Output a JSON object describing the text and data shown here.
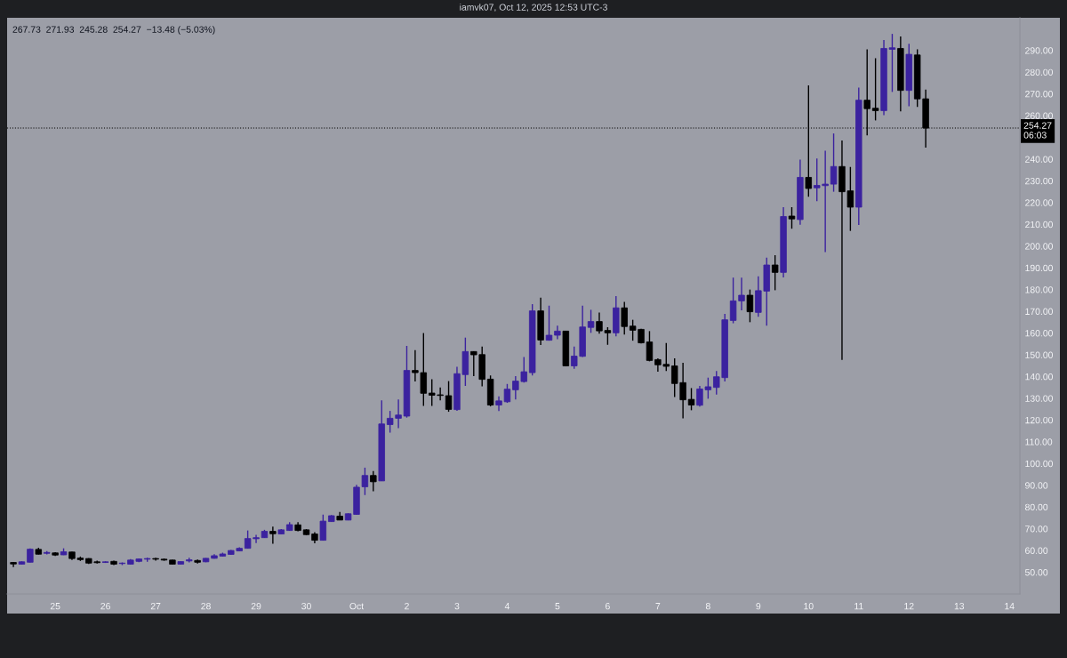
{
  "chart_data": {
    "type": "candlestick",
    "annotations": [
      "iamvk07, Oct 12, 2025 12:53 UTC-3",
      "267.73  271.93  245.28  254.27  −13.48 (−5.03%)"
    ],
    "x": [
      "2025-09-24T04:00",
      "2025-09-24T08:00",
      "2025-09-24T12:00",
      "2025-09-24T16:00",
      "2025-09-24T20:00",
      "2025-09-25T00:00",
      "2025-09-25T04:00",
      "2025-09-25T08:00",
      "2025-09-25T12:00",
      "2025-09-25T16:00",
      "2025-09-25T20:00",
      "2025-09-26T00:00",
      "2025-09-26T04:00",
      "2025-09-26T08:00",
      "2025-09-26T12:00",
      "2025-09-26T16:00",
      "2025-09-26T20:00",
      "2025-09-27T00:00",
      "2025-09-27T04:00",
      "2025-09-27T08:00",
      "2025-09-27T12:00",
      "2025-09-27T16:00",
      "2025-09-27T20:00",
      "2025-09-28T00:00",
      "2025-09-28T04:00",
      "2025-09-28T08:00",
      "2025-09-28T12:00",
      "2025-09-28T16:00",
      "2025-09-28T20:00",
      "2025-09-29T00:00",
      "2025-09-29T04:00",
      "2025-09-29T08:00",
      "2025-09-29T12:00",
      "2025-09-29T16:00",
      "2025-09-29T20:00",
      "2025-09-30T00:00",
      "2025-09-30T04:00",
      "2025-09-30T08:00",
      "2025-09-30T12:00",
      "2025-09-30T16:00",
      "2025-09-30T20:00",
      "2025-10-01T00:00",
      "2025-10-01T04:00",
      "2025-10-01T08:00",
      "2025-10-01T12:00",
      "2025-10-01T16:00",
      "2025-10-01T20:00",
      "2025-10-02T00:00",
      "2025-10-02T04:00",
      "2025-10-02T08:00",
      "2025-10-02T12:00",
      "2025-10-02T16:00",
      "2025-10-02T20:00",
      "2025-10-03T00:00",
      "2025-10-03T04:00",
      "2025-10-03T08:00",
      "2025-10-03T12:00",
      "2025-10-03T16:00",
      "2025-10-03T20:00",
      "2025-10-04T00:00",
      "2025-10-04T04:00",
      "2025-10-04T08:00",
      "2025-10-04T12:00",
      "2025-10-04T16:00",
      "2025-10-04T20:00",
      "2025-10-05T00:00",
      "2025-10-05T04:00",
      "2025-10-05T08:00",
      "2025-10-05T12:00",
      "2025-10-05T16:00",
      "2025-10-05T20:00",
      "2025-10-06T00:00",
      "2025-10-06T04:00",
      "2025-10-06T08:00",
      "2025-10-06T12:00",
      "2025-10-06T16:00",
      "2025-10-06T20:00",
      "2025-10-07T00:00",
      "2025-10-07T04:00",
      "2025-10-07T08:00",
      "2025-10-07T12:00",
      "2025-10-07T16:00",
      "2025-10-07T20:00",
      "2025-10-08T00:00",
      "2025-10-08T04:00",
      "2025-10-08T08:00",
      "2025-10-08T12:00",
      "2025-10-08T16:00",
      "2025-10-08T20:00",
      "2025-10-09T00:00",
      "2025-10-09T04:00",
      "2025-10-09T08:00",
      "2025-10-09T12:00",
      "2025-10-09T16:00",
      "2025-10-09T20:00",
      "2025-10-10T00:00",
      "2025-10-10T04:00",
      "2025-10-10T08:00",
      "2025-10-10T12:00",
      "2025-10-10T16:00",
      "2025-10-10T20:00",
      "2025-10-11T00:00",
      "2025-10-11T04:00",
      "2025-10-11T08:00",
      "2025-10-11T12:00",
      "2025-10-11T16:00",
      "2025-10-11T20:00",
      "2025-10-12T00:00",
      "2025-10-12T04:00",
      "2025-10-12T08:00"
    ],
    "ohlc": [
      [
        54.5,
        54.7,
        52.4,
        53.8
      ],
      [
        53.7,
        55.0,
        53.5,
        54.8
      ],
      [
        54.6,
        61.0,
        54.5,
        60.6
      ],
      [
        60.5,
        61.3,
        58.2,
        58.3
      ],
      [
        58.7,
        59.7,
        58.2,
        59.1
      ],
      [
        58.9,
        59.2,
        57.5,
        57.9
      ],
      [
        58.0,
        61.0,
        57.9,
        59.4
      ],
      [
        59.3,
        59.4,
        55.6,
        56.3
      ],
      [
        56.5,
        57.2,
        55.2,
        55.8
      ],
      [
        56.3,
        56.5,
        53.8,
        54.2
      ],
      [
        54.8,
        55.3,
        54.0,
        54.4
      ],
      [
        54.5,
        55.0,
        54.3,
        54.8
      ],
      [
        55.0,
        55.3,
        53.3,
        53.7
      ],
      [
        54.0,
        54.5,
        53.3,
        54.2
      ],
      [
        53.7,
        56.1,
        53.5,
        55.6
      ],
      [
        55.0,
        56.3,
        54.6,
        56.1
      ],
      [
        56.0,
        56.7,
        54.8,
        56.3
      ],
      [
        56.3,
        56.7,
        55.3,
        56.0
      ],
      [
        56.0,
        56.3,
        55.3,
        55.6
      ],
      [
        55.6,
        55.7,
        53.5,
        53.7
      ],
      [
        53.7,
        55.0,
        53.5,
        54.9
      ],
      [
        55.2,
        56.7,
        54.5,
        55.7
      ],
      [
        55.4,
        55.8,
        54.0,
        54.6
      ],
      [
        54.8,
        56.5,
        54.6,
        56.4
      ],
      [
        56.4,
        58.3,
        56.3,
        57.6
      ],
      [
        57.4,
        59.0,
        57.2,
        58.4
      ],
      [
        58.2,
        60.2,
        58.0,
        60.0
      ],
      [
        59.8,
        61.5,
        59.7,
        61.0
      ],
      [
        61.0,
        69.2,
        60.9,
        65.5
      ],
      [
        65.4,
        67.2,
        63.4,
        65.9
      ],
      [
        65.9,
        69.5,
        65.8,
        68.8
      ],
      [
        68.8,
        71.0,
        63.1,
        67.7
      ],
      [
        67.6,
        69.9,
        67.5,
        69.5
      ],
      [
        69.2,
        73.0,
        69.0,
        71.9
      ],
      [
        71.8,
        73.0,
        68.8,
        69.2
      ],
      [
        69.5,
        69.8,
        67.0,
        67.3
      ],
      [
        67.6,
        68.4,
        63.3,
        64.7
      ],
      [
        64.7,
        76.5,
        64.6,
        73.5
      ],
      [
        73.3,
        76.3,
        73.2,
        76.0
      ],
      [
        75.8,
        77.7,
        73.9,
        74.0
      ],
      [
        74.0,
        77.1,
        73.9,
        76.9
      ],
      [
        76.6,
        90.2,
        76.5,
        89.1
      ],
      [
        89.3,
        98.1,
        85.5,
        94.5
      ],
      [
        94.5,
        96.5,
        87.2,
        91.6
      ],
      [
        92.0,
        129.0,
        91.9,
        118.2
      ],
      [
        117.9,
        124.2,
        114.2,
        120.8
      ],
      [
        120.8,
        129.5,
        116.3,
        122.3
      ],
      [
        121.8,
        154.1,
        121.1,
        142.8
      ],
      [
        142.8,
        152.2,
        137.7,
        141.8
      ],
      [
        141.8,
        160.0,
        126.5,
        132.3
      ],
      [
        132.4,
        138.8,
        126.5,
        131.4
      ],
      [
        131.6,
        135.0,
        129.0,
        131.3
      ],
      [
        131.2,
        137.9,
        123.8,
        124.9
      ],
      [
        124.8,
        144.5,
        124.2,
        141.3
      ],
      [
        140.9,
        157.9,
        135.7,
        151.5
      ],
      [
        151.5,
        151.6,
        140.2,
        150.0
      ],
      [
        150.1,
        153.8,
        135.5,
        138.7
      ],
      [
        138.8,
        140.5,
        126.3,
        126.9
      ],
      [
        126.9,
        130.9,
        124.1,
        128.8
      ],
      [
        128.4,
        136.6,
        127.9,
        134.2
      ],
      [
        133.9,
        140.2,
        129.5,
        137.9
      ],
      [
        137.7,
        149.0,
        137.2,
        142.2
      ],
      [
        141.8,
        173.3,
        140.5,
        170.2
      ],
      [
        170.2,
        176.3,
        154.5,
        156.8
      ],
      [
        156.7,
        172.6,
        156.5,
        159.0
      ],
      [
        159.0,
        163.4,
        157.2,
        160.9
      ],
      [
        160.9,
        161.0,
        144.7,
        144.9
      ],
      [
        144.9,
        153.8,
        143.6,
        149.4
      ],
      [
        149.3,
        172.6,
        149.0,
        162.8
      ],
      [
        162.6,
        170.7,
        160.1,
        165.3
      ],
      [
        165.3,
        169.4,
        159.7,
        161.0
      ],
      [
        161.2,
        162.7,
        154.6,
        160.1
      ],
      [
        160.1,
        177.0,
        158.5,
        171.6
      ],
      [
        171.6,
        174.3,
        159.3,
        163.0
      ],
      [
        163.2,
        166.1,
        156.5,
        161.3
      ],
      [
        161.7,
        162.0,
        155.2,
        155.5
      ],
      [
        155.9,
        160.9,
        147.0,
        147.4
      ],
      [
        147.8,
        148.4,
        142.2,
        145.4
      ],
      [
        145.6,
        155.4,
        142.5,
        144.7
      ],
      [
        144.9,
        148.4,
        130.6,
        136.8
      ],
      [
        137.2,
        146.3,
        120.8,
        129.3
      ],
      [
        129.5,
        134.7,
        124.5,
        126.9
      ],
      [
        126.8,
        135.7,
        126.2,
        134.3
      ],
      [
        133.9,
        139.5,
        129.8,
        135.3
      ],
      [
        135.0,
        142.5,
        131.7,
        139.9
      ],
      [
        139.5,
        168.8,
        137.7,
        166.1
      ],
      [
        165.8,
        185.5,
        164.5,
        174.8
      ],
      [
        174.8,
        185.5,
        170.5,
        177.4
      ],
      [
        177.4,
        180.0,
        165.0,
        169.8
      ],
      [
        169.5,
        186.1,
        167.5,
        179.5
      ],
      [
        179.3,
        194.7,
        163.4,
        191.3
      ],
      [
        191.3,
        195.8,
        179.7,
        187.9
      ],
      [
        187.9,
        217.9,
        185.6,
        213.6
      ],
      [
        213.8,
        217.9,
        208.0,
        212.5
      ],
      [
        212.2,
        239.8,
        209.8,
        231.6
      ],
      [
        231.6,
        273.9,
        222.7,
        226.5
      ],
      [
        226.8,
        240.3,
        220.7,
        227.9
      ],
      [
        227.8,
        243.9,
        197.2,
        228.5
      ],
      [
        228.5,
        251.8,
        225.0,
        236.6
      ],
      [
        236.6,
        248.6,
        147.7,
        225.0
      ],
      [
        225.4,
        236.4,
        207.0,
        217.9
      ],
      [
        217.9,
        272.9,
        209.7,
        267.1
      ],
      [
        267.1,
        290.5,
        250.9,
        263.2
      ],
      [
        263.4,
        286.4,
        257.8,
        262.3
      ],
      [
        262.3,
        294.8,
        260.2,
        290.9
      ],
      [
        290.5,
        297.6,
        270.9,
        291.2
      ],
      [
        290.9,
        296.4,
        262.0,
        271.6
      ],
      [
        271.6,
        293.0,
        264.3,
        288.2
      ],
      [
        287.9,
        290.5,
        264.0,
        267.7
      ],
      [
        267.73,
        271.93,
        245.28,
        254.27
      ]
    ],
    "colors": [
      "#000000",
      "#3b229f",
      "#3b229f",
      "#000000",
      "#3b229f",
      "#000000",
      "#3b229f",
      "#000000",
      "#000000",
      "#000000",
      "#000000",
      "#3b229f",
      "#000000",
      "#3b229f",
      "#3b229f",
      "#3b229f",
      "#3b229f",
      "#000000",
      "#000000",
      "#000000",
      "#3b229f",
      "#3b229f",
      "#000000",
      "#3b229f",
      "#3b229f",
      "#3b229f",
      "#3b229f",
      "#3b229f",
      "#3b229f",
      "#3b229f",
      "#3b229f",
      "#000000",
      "#3b229f",
      "#3b229f",
      "#000000",
      "#000000",
      "#000000",
      "#3b229f",
      "#3b229f",
      "#000000",
      "#3b229f",
      "#3b229f",
      "#3b229f",
      "#000000",
      "#3b229f",
      "#3b229f",
      "#3b229f",
      "#3b229f",
      "#000000",
      "#000000",
      "#000000",
      "#000000",
      "#000000",
      "#3b229f",
      "#3b229f",
      "#000000",
      "#000000",
      "#000000",
      "#3b229f",
      "#3b229f",
      "#3b229f",
      "#3b229f",
      "#3b229f",
      "#000000",
      "#3b229f",
      "#3b229f",
      "#000000",
      "#3b229f",
      "#3b229f",
      "#3b229f",
      "#000000",
      "#000000",
      "#3b229f",
      "#000000",
      "#000000",
      "#000000",
      "#000000",
      "#000000",
      "#000000",
      "#000000",
      "#000000",
      "#000000",
      "#3b229f",
      "#3b229f",
      "#3b229f",
      "#3b229f",
      "#3b229f",
      "#3b229f",
      "#000000",
      "#3b229f",
      "#3b229f",
      "#000000",
      "#3b229f",
      "#000000",
      "#3b229f",
      "#000000",
      "#3b229f",
      "#3b229f",
      "#3b229f",
      "#000000",
      "#000000",
      "#3b229f",
      "#000000",
      "#000000",
      "#3b229f",
      "#3b229f",
      "#000000",
      "#3b229f",
      "#000000",
      "#000000"
    ],
    "xlim": [
      "2025-09-24T01:00",
      "2025-10-14T05:00"
    ],
    "xticks": [
      {
        "value": "2025-09-25",
        "label": "25"
      },
      {
        "value": "2025-09-26",
        "label": "26"
      },
      {
        "value": "2025-09-27",
        "label": "27"
      },
      {
        "value": "2025-09-28",
        "label": "28"
      },
      {
        "value": "2025-09-29",
        "label": "29"
      },
      {
        "value": "2025-09-30",
        "label": "30"
      },
      {
        "value": "2025-10-01",
        "label": "Oct"
      },
      {
        "value": "2025-10-02",
        "label": "2"
      },
      {
        "value": "2025-10-03",
        "label": "3"
      },
      {
        "value": "2025-10-04",
        "label": "4"
      },
      {
        "value": "2025-10-05",
        "label": "5"
      },
      {
        "value": "2025-10-06",
        "label": "6"
      },
      {
        "value": "2025-10-07",
        "label": "7"
      },
      {
        "value": "2025-10-08",
        "label": "8"
      },
      {
        "value": "2025-10-09",
        "label": "9"
      },
      {
        "value": "2025-10-10",
        "label": "10"
      },
      {
        "value": "2025-10-11",
        "label": "11"
      },
      {
        "value": "2025-10-12",
        "label": "12"
      },
      {
        "value": "2025-10-13",
        "label": "13"
      },
      {
        "value": "2025-10-14",
        "label": "14"
      }
    ],
    "ylim": [
      40,
      305
    ],
    "yticks": [
      {
        "value": 50,
        "label": "50.00"
      },
      {
        "value": 60,
        "label": "60.00"
      },
      {
        "value": 70,
        "label": "70.00"
      },
      {
        "value": 80,
        "label": "80.00"
      },
      {
        "value": 90,
        "label": "90.00"
      },
      {
        "value": 100,
        "label": "100.00"
      },
      {
        "value": 110,
        "label": "110.00"
      },
      {
        "value": 120,
        "label": "120.00"
      },
      {
        "value": 130,
        "label": "130.00"
      },
      {
        "value": 140,
        "label": "140.00"
      },
      {
        "value": 150,
        "label": "150.00"
      },
      {
        "value": 160,
        "label": "160.00"
      },
      {
        "value": 170,
        "label": "170.00"
      },
      {
        "value": 180,
        "label": "180.00"
      },
      {
        "value": 190,
        "label": "190.00"
      },
      {
        "value": 200,
        "label": "200.00"
      },
      {
        "value": 210,
        "label": "210.00"
      },
      {
        "value": 220,
        "label": "220.00"
      },
      {
        "value": 230,
        "label": "230.00"
      },
      {
        "value": 240,
        "label": "240.00"
      },
      {
        "value": 260,
        "label": "260.00"
      },
      {
        "value": 270,
        "label": "270.00"
      },
      {
        "value": 280,
        "label": "280.00"
      },
      {
        "value": 290,
        "label": "290.00"
      }
    ],
    "ref_lines": [
      {
        "axis": "y",
        "value": 254.27,
        "label": "254.27\n06:03",
        "color": "#000000",
        "line_style": "dotted"
      }
    ]
  }
}
